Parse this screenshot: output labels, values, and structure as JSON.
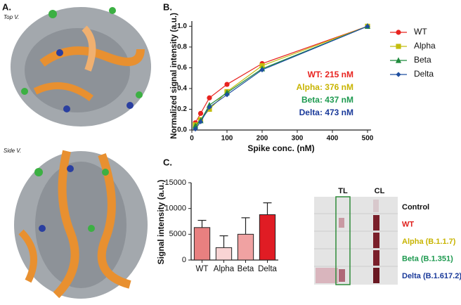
{
  "figure": {
    "panels": [
      "A.",
      "B.",
      "C."
    ],
    "views": [
      "Top V.",
      "Side V."
    ],
    "strip": {
      "columns": [
        "TL",
        "CL"
      ],
      "rows": [
        {
          "label": "Control",
          "color": "#111111"
        },
        {
          "label": "WT",
          "color": "#e0201c"
        },
        {
          "label": "Alpha (B.1.1.7)",
          "color": "#c8b400"
        },
        {
          "label": "Beta (B.1.351)",
          "color": "#1e9a50"
        },
        {
          "label": "Delta (B.1.617.2)",
          "color": "#1a3a9a"
        }
      ]
    }
  },
  "chart_data": [
    {
      "type": "line",
      "xlabel": "Spike conc. (nM)",
      "ylabel": "Normalized signal intensity  (a.u.)",
      "x": [
        10,
        25,
        50,
        100,
        200,
        500
      ],
      "series": [
        {
          "name": "WT",
          "color": "#e8231f",
          "marker": "circle",
          "values": [
            0.07,
            0.16,
            0.31,
            0.44,
            0.64,
            1.0
          ]
        },
        {
          "name": "Alpha",
          "color": "#c3bd0e",
          "marker": "square",
          "values": [
            0.05,
            0.1,
            0.2,
            0.37,
            0.62,
            1.0
          ]
        },
        {
          "name": "Beta",
          "color": "#1f8a3c",
          "marker": "triangle",
          "values": [
            0.04,
            0.09,
            0.24,
            0.36,
            0.59,
            1.0
          ]
        },
        {
          "name": "Delta",
          "color": "#1f4fa0",
          "marker": "diamond",
          "values": [
            0.01,
            0.08,
            0.22,
            0.34,
            0.58,
            1.0
          ]
        }
      ],
      "xlim": [
        0,
        510
      ],
      "xticks": [
        0,
        100,
        200,
        300,
        400,
        500
      ],
      "ylim": [
        0,
        1.05
      ],
      "yticks": [
        {
          "value": 0,
          "label": "0.0"
        },
        {
          "value": 0.2,
          "label": "0.2"
        },
        {
          "value": 0.4,
          "label": "0.4"
        },
        {
          "value": 0.6,
          "label": "0.6"
        },
        {
          "value": 0.8,
          "label": "0.8"
        },
        {
          "value": 1,
          "label": "1.0"
        }
      ],
      "annotations": [
        {
          "text": "WT: 215 nM",
          "color": "#e8231f"
        },
        {
          "text": "Alpha: 376 nM",
          "color": "#c8b400"
        },
        {
          "text": "Beta: 437 nM",
          "color": "#1e9a50"
        },
        {
          "text": "Delta: 473 nM",
          "color": "#1a3a9a"
        }
      ]
    },
    {
      "type": "bar",
      "ylabel": "Signal intensity  (a.u.)",
      "categories": [
        "WT",
        "Alpha",
        "Beta",
        "Delta"
      ],
      "values": [
        6300,
        2400,
        5000,
        8800
      ],
      "errors": [
        1400,
        2300,
        3200,
        2300
      ],
      "colors": [
        "#e88080",
        "#f9d4d4",
        "#f0a2a2",
        "#e01c24"
      ],
      "ylim": [
        0,
        15000
      ],
      "yticks": [
        0,
        5000,
        10000,
        15000
      ]
    }
  ]
}
